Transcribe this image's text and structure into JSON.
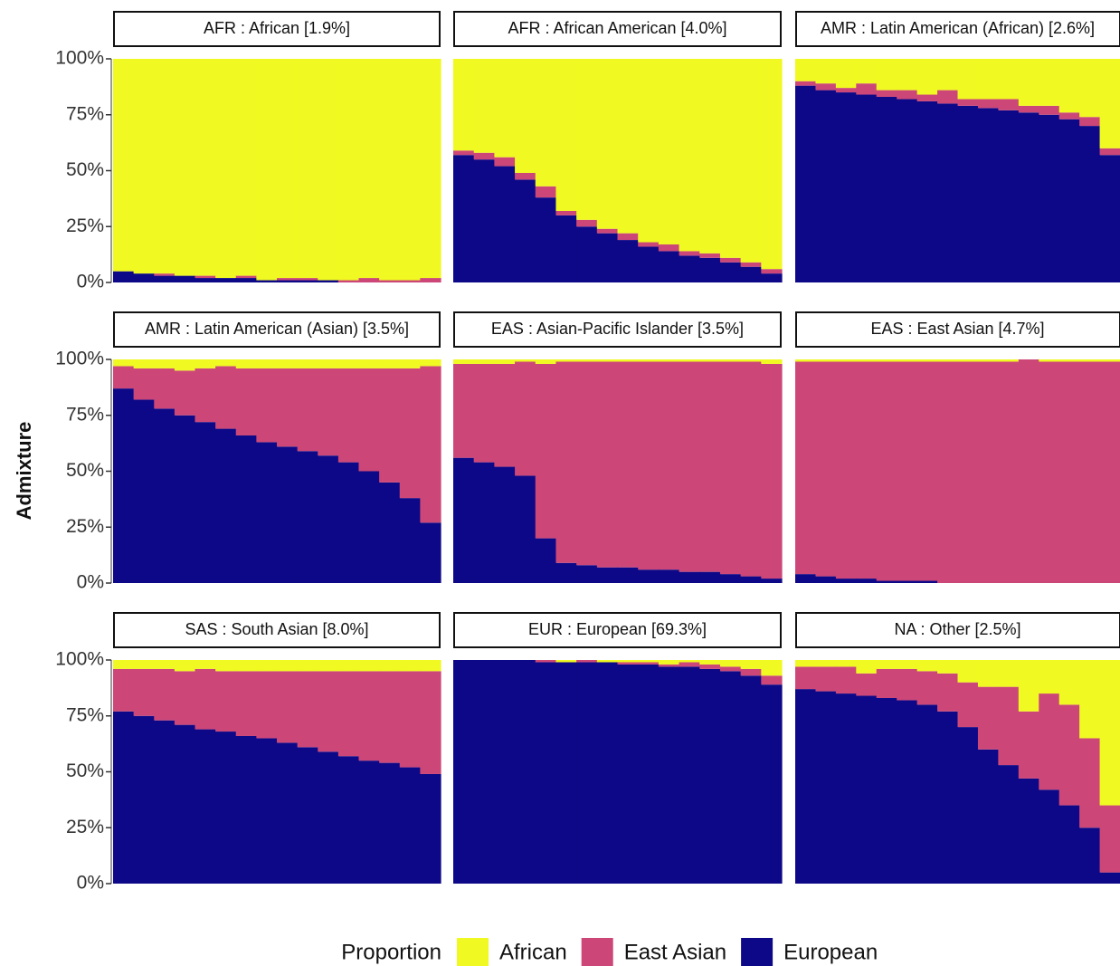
{
  "chart_data": [
    {
      "type": "bar",
      "stacked": true,
      "title": "AFR : African [1.9%]",
      "ylim": [
        0,
        100
      ],
      "yticks": [
        {
          "value": 0,
          "label": "0%"
        },
        {
          "value": 25,
          "label": "25%"
        },
        {
          "value": 50,
          "label": "50%"
        },
        {
          "value": 75,
          "label": "75%"
        },
        {
          "value": 100,
          "label": "100%"
        }
      ],
      "series": [
        {
          "name": "European",
          "color": "#0d0887",
          "values": [
            5,
            4,
            3,
            3,
            2,
            2,
            2,
            1,
            1,
            1,
            1,
            0,
            0,
            0,
            0,
            0
          ]
        },
        {
          "name": "East Asian",
          "color": "#cc4778",
          "values": [
            0,
            0,
            1,
            0,
            1,
            0,
            1,
            0,
            1,
            1,
            0,
            1,
            2,
            1,
            1,
            2
          ]
        },
        {
          "name": "African",
          "color": "#f0f921",
          "values": [
            95,
            96,
            96,
            97,
            97,
            98,
            97,
            99,
            98,
            98,
            99,
            99,
            98,
            99,
            99,
            98
          ]
        }
      ]
    },
    {
      "type": "bar",
      "stacked": true,
      "title": "AFR : African American [4.0%]",
      "ylim": [
        0,
        100
      ],
      "series": [
        {
          "name": "European",
          "color": "#0d0887",
          "values": [
            57,
            55,
            52,
            46,
            38,
            30,
            25,
            22,
            19,
            16,
            14,
            12,
            11,
            9,
            7,
            4
          ]
        },
        {
          "name": "East Asian",
          "color": "#cc4778",
          "values": [
            2,
            3,
            4,
            3,
            5,
            2,
            3,
            2,
            3,
            2,
            3,
            2,
            2,
            2,
            2,
            2
          ]
        },
        {
          "name": "African",
          "color": "#f0f921",
          "values": [
            41,
            42,
            44,
            51,
            57,
            68,
            72,
            76,
            78,
            82,
            83,
            86,
            87,
            89,
            91,
            94
          ]
        }
      ]
    },
    {
      "type": "bar",
      "stacked": true,
      "title": "AMR : Latin American (African) [2.6%]",
      "ylim": [
        0,
        100
      ],
      "series": [
        {
          "name": "European",
          "color": "#0d0887",
          "values": [
            88,
            86,
            85,
            84,
            83,
            82,
            81,
            80,
            79,
            78,
            77,
            76,
            75,
            73,
            70,
            57
          ]
        },
        {
          "name": "East Asian",
          "color": "#cc4778",
          "values": [
            2,
            3,
            2,
            5,
            3,
            4,
            3,
            6,
            3,
            4,
            5,
            3,
            4,
            3,
            4,
            3
          ]
        },
        {
          "name": "African",
          "color": "#f0f921",
          "values": [
            10,
            11,
            13,
            11,
            14,
            14,
            16,
            14,
            18,
            18,
            18,
            21,
            21,
            24,
            26,
            40
          ]
        }
      ]
    },
    {
      "type": "bar",
      "stacked": true,
      "title": "AMR : Latin American (Asian) [3.5%]",
      "ylim": [
        0,
        100
      ],
      "yticks": [
        {
          "value": 0,
          "label": "0%"
        },
        {
          "value": 25,
          "label": "25%"
        },
        {
          "value": 50,
          "label": "50%"
        },
        {
          "value": 75,
          "label": "75%"
        },
        {
          "value": 100,
          "label": "100%"
        }
      ],
      "series": [
        {
          "name": "European",
          "color": "#0d0887",
          "values": [
            87,
            82,
            78,
            75,
            72,
            69,
            66,
            63,
            61,
            59,
            57,
            54,
            50,
            45,
            38,
            27
          ]
        },
        {
          "name": "East Asian",
          "color": "#cc4778",
          "values": [
            10,
            14,
            18,
            20,
            24,
            28,
            30,
            33,
            35,
            37,
            39,
            42,
            46,
            51,
            58,
            70
          ]
        },
        {
          "name": "African",
          "color": "#f0f921",
          "values": [
            3,
            4,
            4,
            5,
            4,
            3,
            4,
            4,
            4,
            4,
            4,
            4,
            4,
            4,
            4,
            3
          ]
        }
      ]
    },
    {
      "type": "bar",
      "stacked": true,
      "title": "EAS : Asian-Pacific Islander [3.5%]",
      "ylim": [
        0,
        100
      ],
      "series": [
        {
          "name": "European",
          "color": "#0d0887",
          "values": [
            56,
            54,
            52,
            48,
            20,
            9,
            8,
            7,
            7,
            6,
            6,
            5,
            5,
            4,
            3,
            2
          ]
        },
        {
          "name": "East Asian",
          "color": "#cc4778",
          "values": [
            42,
            44,
            46,
            51,
            78,
            90,
            91,
            92,
            92,
            93,
            93,
            94,
            94,
            95,
            96,
            96
          ]
        },
        {
          "name": "African",
          "color": "#f0f921",
          "values": [
            2,
            2,
            2,
            1,
            2,
            1,
            1,
            1,
            1,
            1,
            1,
            1,
            1,
            1,
            1,
            2
          ]
        }
      ]
    },
    {
      "type": "bar",
      "stacked": true,
      "title": "EAS : East Asian [4.7%]",
      "ylim": [
        0,
        100
      ],
      "series": [
        {
          "name": "European",
          "color": "#0d0887",
          "values": [
            4,
            3,
            2,
            2,
            1,
            1,
            1,
            0,
            0,
            0,
            0,
            0,
            0,
            0,
            0,
            0
          ]
        },
        {
          "name": "East Asian",
          "color": "#cc4778",
          "values": [
            95,
            96,
            97,
            97,
            98,
            98,
            98,
            99,
            99,
            99,
            99,
            100,
            99,
            99,
            99,
            99
          ]
        },
        {
          "name": "African",
          "color": "#f0f921",
          "values": [
            1,
            1,
            1,
            1,
            1,
            1,
            1,
            1,
            1,
            1,
            1,
            0,
            1,
            1,
            1,
            1
          ]
        }
      ]
    },
    {
      "type": "bar",
      "stacked": true,
      "title": "SAS : South Asian [8.0%]",
      "ylim": [
        0,
        100
      ],
      "yticks": [
        {
          "value": 0,
          "label": "0%"
        },
        {
          "value": 25,
          "label": "25%"
        },
        {
          "value": 50,
          "label": "50%"
        },
        {
          "value": 75,
          "label": "75%"
        },
        {
          "value": 100,
          "label": "100%"
        }
      ],
      "series": [
        {
          "name": "European",
          "color": "#0d0887",
          "values": [
            77,
            75,
            73,
            71,
            69,
            68,
            66,
            65,
            63,
            61,
            59,
            57,
            55,
            54,
            52,
            49
          ]
        },
        {
          "name": "East Asian",
          "color": "#cc4778",
          "values": [
            19,
            21,
            23,
            24,
            27,
            27,
            29,
            30,
            32,
            34,
            36,
            38,
            40,
            41,
            43,
            46
          ]
        },
        {
          "name": "African",
          "color": "#f0f921",
          "values": [
            4,
            4,
            4,
            5,
            4,
            5,
            5,
            5,
            5,
            5,
            5,
            5,
            5,
            5,
            5,
            5
          ]
        }
      ]
    },
    {
      "type": "bar",
      "stacked": true,
      "title": "EUR : European [69.3%]",
      "ylim": [
        0,
        100
      ],
      "series": [
        {
          "name": "European",
          "color": "#0d0887",
          "values": [
            100,
            100,
            100,
            100,
            99,
            99,
            99,
            99,
            98,
            98,
            97,
            97,
            96,
            95,
            93,
            89
          ]
        },
        {
          "name": "East Asian",
          "color": "#cc4778",
          "values": [
            0,
            0,
            0,
            0,
            1,
            0,
            1,
            0,
            1,
            1,
            1,
            2,
            2,
            2,
            3,
            4
          ]
        },
        {
          "name": "African",
          "color": "#f0f921",
          "values": [
            0,
            0,
            0,
            0,
            0,
            1,
            0,
            1,
            1,
            1,
            2,
            1,
            2,
            3,
            4,
            7
          ]
        }
      ]
    },
    {
      "type": "bar",
      "stacked": true,
      "title": "NA : Other [2.5%]",
      "ylim": [
        0,
        100
      ],
      "series": [
        {
          "name": "European",
          "color": "#0d0887",
          "values": [
            87,
            86,
            85,
            84,
            83,
            82,
            80,
            77,
            70,
            60,
            53,
            47,
            42,
            35,
            25,
            5
          ]
        },
        {
          "name": "East Asian",
          "color": "#cc4778",
          "values": [
            10,
            11,
            12,
            10,
            13,
            14,
            15,
            17,
            20,
            28,
            35,
            30,
            43,
            45,
            40,
            30
          ]
        },
        {
          "name": "African",
          "color": "#f0f921",
          "values": [
            3,
            3,
            3,
            6,
            4,
            4,
            5,
            6,
            10,
            12,
            12,
            23,
            15,
            20,
            35,
            65
          ]
        }
      ]
    }
  ],
  "y_label": "Admixture",
  "legend_title": "Proportion"
}
